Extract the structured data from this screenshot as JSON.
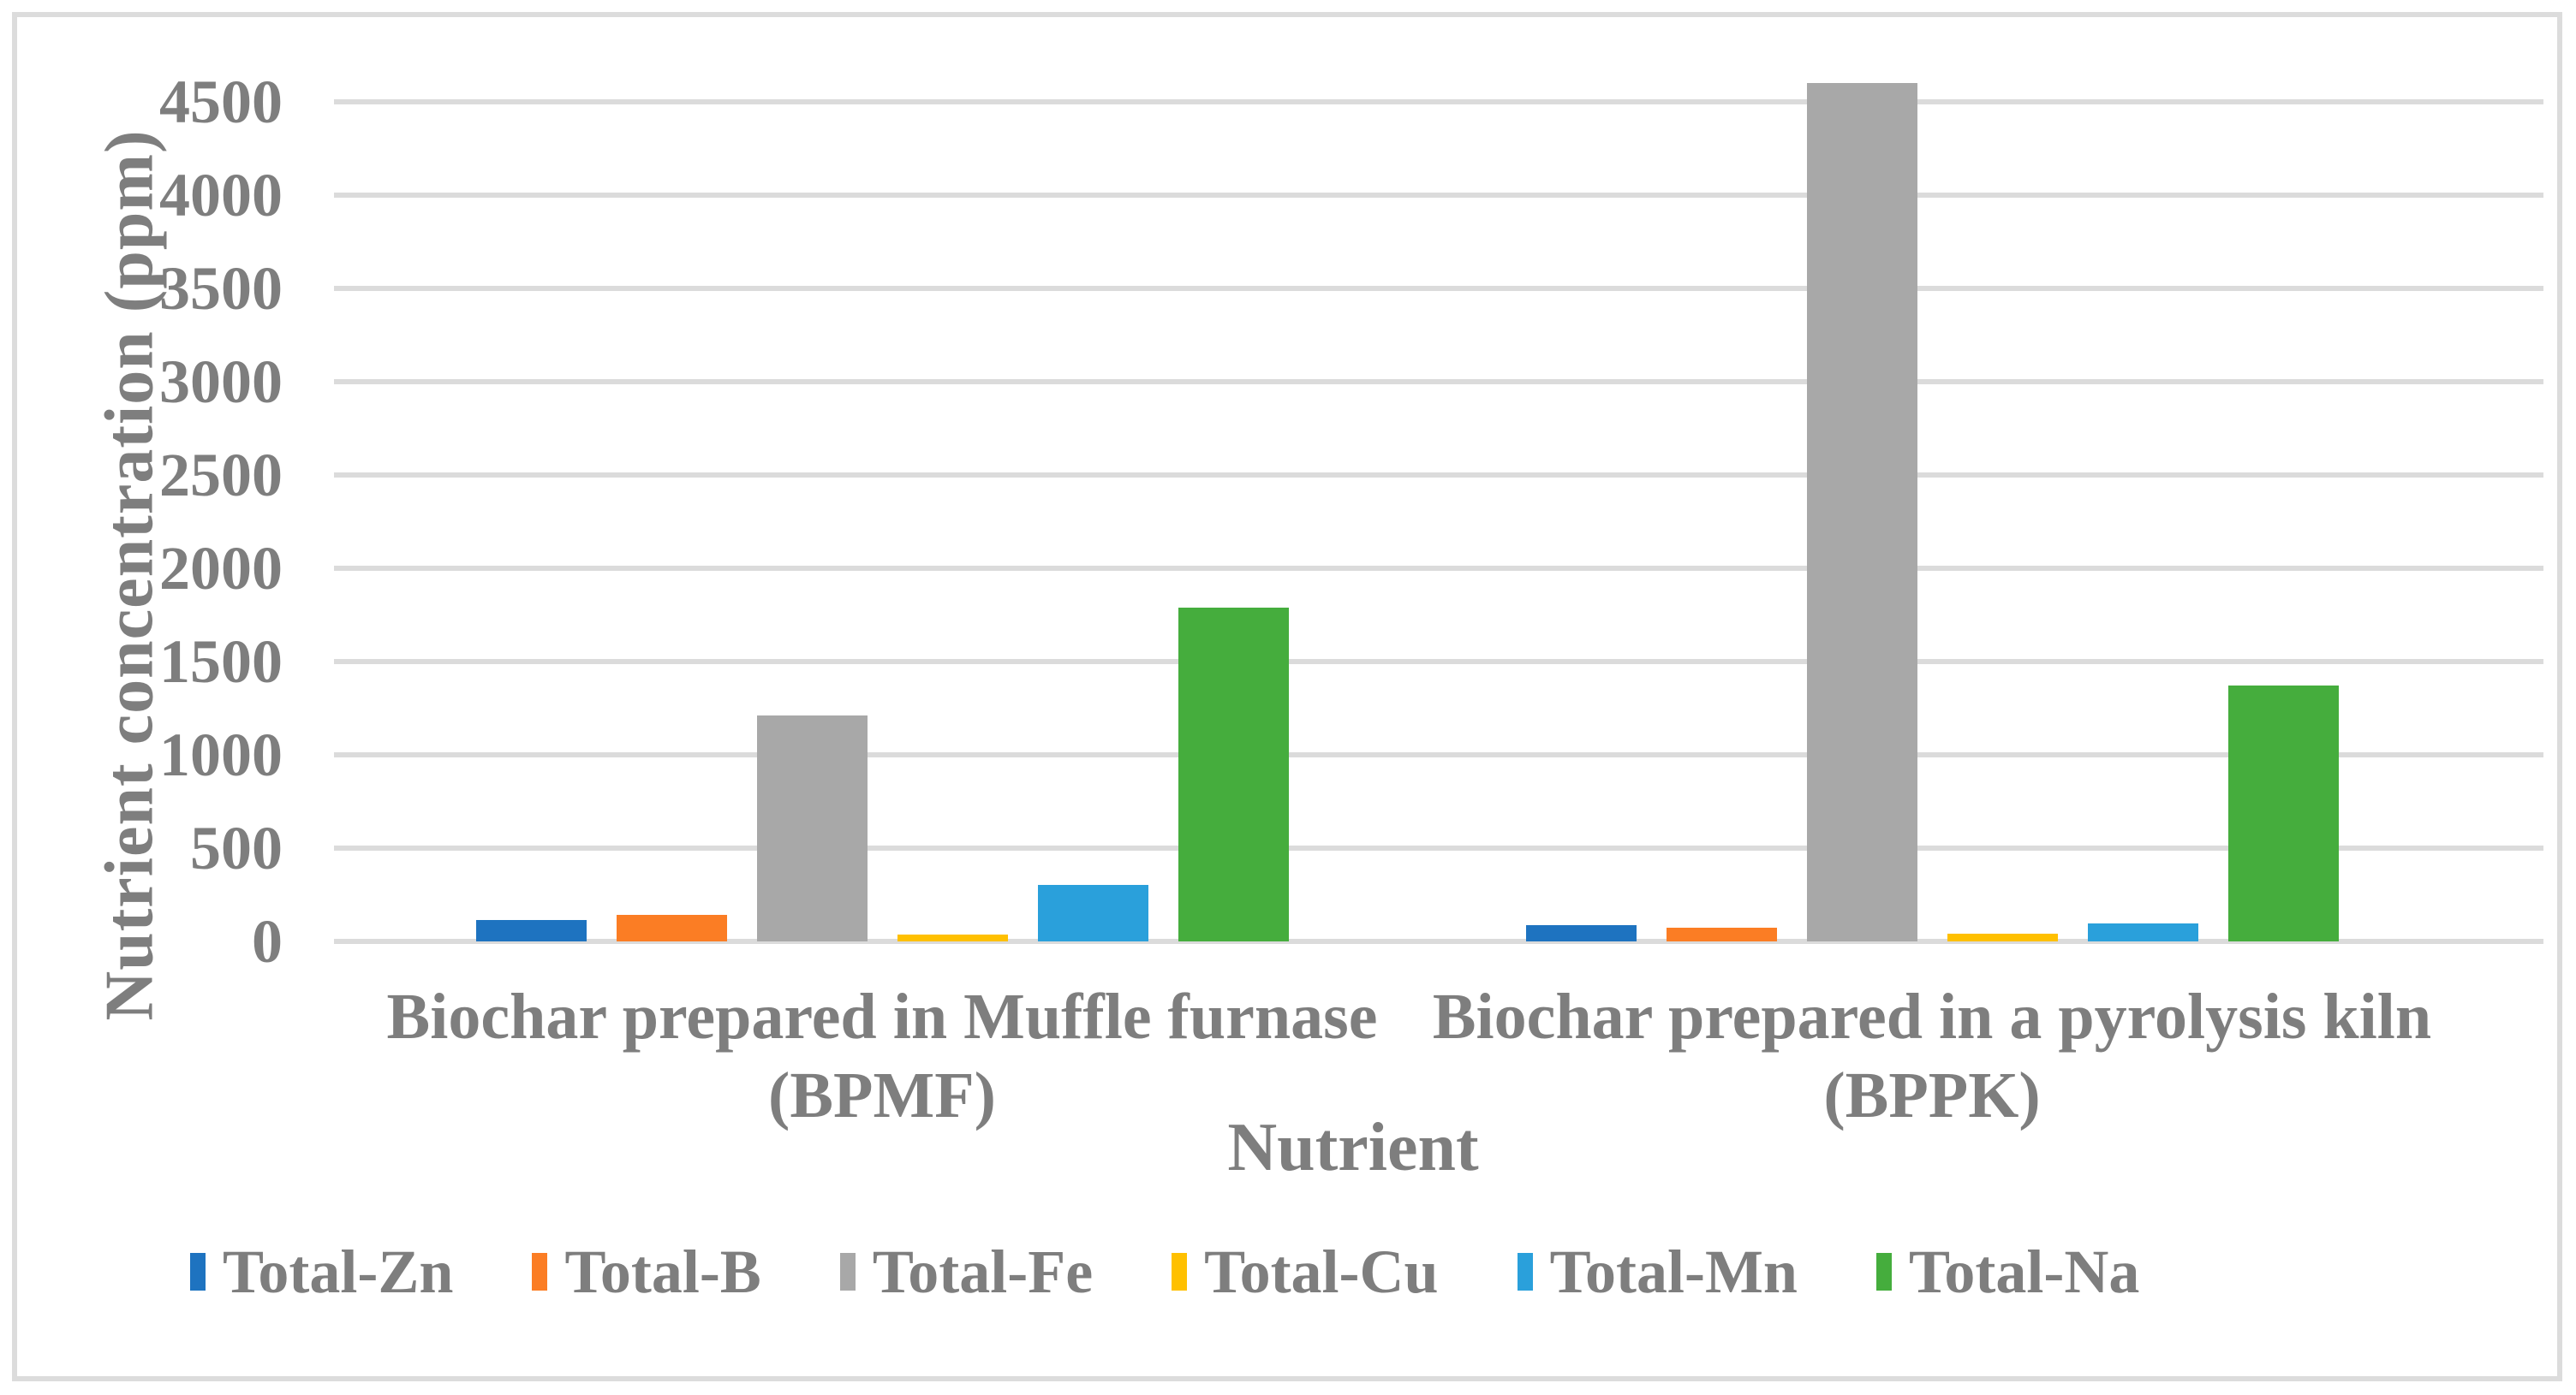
{
  "chart_data": {
    "type": "bar",
    "title": "",
    "xlabel": "Nutrient",
    "ylabel": "Nutrient concentration (ppm)",
    "ylim": [
      0,
      4500
    ],
    "ytick_step": 500,
    "yticks": [
      0,
      500,
      1000,
      1500,
      2000,
      2500,
      3000,
      3500,
      4000,
      4500
    ],
    "grid": true,
    "legend_position": "bottom",
    "categories": [
      "Biochar prepared in Muffle furnase",
      "Biochar prepared in a pyrolysis kiln"
    ],
    "category_codes": [
      "(BPMF)",
      "(BPPK)"
    ],
    "series": [
      {
        "name": "Total-Zn",
        "color": "#1e73c0",
        "values": [
          115,
          85
        ]
      },
      {
        "name": "Total-B",
        "color": "#fb7d24",
        "values": [
          140,
          72
        ]
      },
      {
        "name": "Total-Fe",
        "color": "#a8a8a8",
        "values": [
          1210,
          4600
        ]
      },
      {
        "name": "Total-Cu",
        "color": "#ffc000",
        "values": [
          35,
          40
        ]
      },
      {
        "name": "Total-Mn",
        "color": "#2aa0db",
        "values": [
          305,
          98
        ]
      },
      {
        "name": "Total-Na",
        "color": "#45ad3d",
        "values": [
          1790,
          1370
        ]
      }
    ],
    "colors": {
      "gridline": "#dbdbdb",
      "border": "#dcdcdc",
      "text": "#7e7e7e"
    }
  }
}
